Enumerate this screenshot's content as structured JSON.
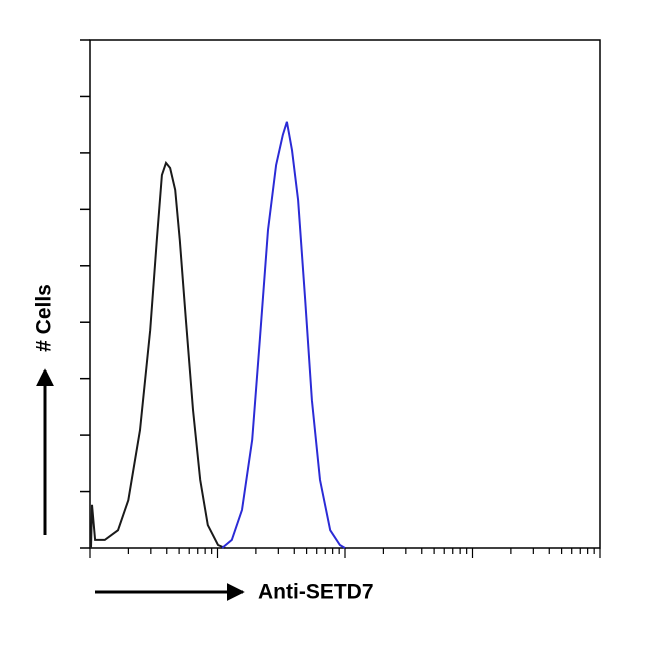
{
  "chart_data": {
    "type": "line",
    "x_label": "Anti-SETD7",
    "y_label": "# Cells",
    "xlim": [
      0,
      100
    ],
    "ylim": [
      0,
      100
    ],
    "series": [
      {
        "color": "#1a1a1a",
        "x": [
          0.2,
          0.4,
          1.0,
          2.9,
          5.5,
          7.5,
          9.8,
          11.8,
          13.1,
          14.1,
          14.9,
          15.7,
          16.7,
          17.6,
          18.8,
          20.2,
          21.6,
          23.1,
          25.1,
          26.5
        ],
        "values": [
          0,
          8.5,
          1.6,
          1.6,
          3.5,
          9.4,
          23.2,
          42.9,
          60.6,
          73.4,
          75.8,
          74.8,
          70.5,
          60.6,
          44.9,
          27.2,
          13.4,
          4.5,
          0.6,
          0
        ]
      },
      {
        "color": "#2b2bd6",
        "x": [
          25.9,
          27.8,
          29.8,
          31.8,
          33.3,
          34.9,
          36.5,
          37.8,
          38.6,
          39.6,
          40.8,
          42.2,
          43.5,
          45.1,
          47.1,
          49.0,
          50.0
        ],
        "values": [
          0,
          1.6,
          7.5,
          21.3,
          40.9,
          62.6,
          75.4,
          81.3,
          83.9,
          78.3,
          68.5,
          48.8,
          29.1,
          13.4,
          3.5,
          0.6,
          0
        ]
      }
    ]
  }
}
